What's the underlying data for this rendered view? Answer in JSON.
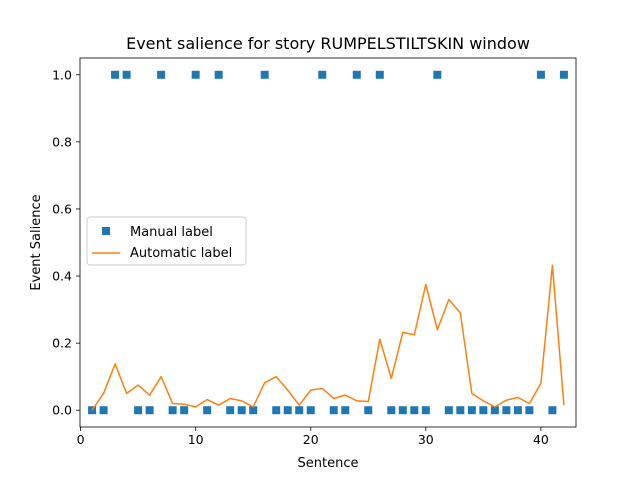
{
  "chart_data": {
    "type": "line",
    "title": "Event salience for story RUMPELSTILTSKIN window",
    "xlabel": "Sentence",
    "ylabel": "Event Salience",
    "xlim": [
      -0.05,
      43.05
    ],
    "ylim": [
      -0.05,
      1.05
    ],
    "xticks": [
      0,
      10,
      20,
      30,
      40
    ],
    "yticks": [
      0.0,
      0.2,
      0.4,
      0.6,
      0.8,
      1.0
    ],
    "xtick_labels": [
      "0",
      "10",
      "20",
      "30",
      "40"
    ],
    "ytick_labels": [
      "0.0",
      "0.2",
      "0.4",
      "0.6",
      "0.8",
      "1.0"
    ],
    "grid": false,
    "legend": {
      "placement": "center-left"
    },
    "x": [
      1,
      2,
      3,
      4,
      5,
      6,
      7,
      8,
      9,
      10,
      11,
      12,
      13,
      14,
      15,
      16,
      17,
      18,
      19,
      20,
      21,
      22,
      23,
      24,
      25,
      26,
      27,
      28,
      29,
      30,
      31,
      32,
      33,
      34,
      35,
      36,
      37,
      38,
      39,
      40,
      41,
      42
    ],
    "series": [
      {
        "name": "Manual label",
        "style": "square-marker",
        "color": "#1f77b4",
        "values": [
          0,
          0,
          1,
          1,
          0,
          0,
          1,
          0,
          0,
          1,
          0,
          1,
          0,
          0,
          0,
          1,
          0,
          0,
          0,
          0,
          1,
          0,
          0,
          1,
          0,
          1,
          0,
          0,
          0,
          0,
          1,
          0,
          0,
          0,
          0,
          0,
          0,
          0,
          0,
          1,
          0,
          1
        ]
      },
      {
        "name": "Automatic label",
        "style": "line",
        "color": "#ff7f0e",
        "values": [
          0.0,
          0.05,
          0.138,
          0.05,
          0.075,
          0.045,
          0.1,
          0.02,
          0.018,
          0.01,
          0.032,
          0.015,
          0.035,
          0.028,
          0.01,
          0.082,
          0.1,
          0.06,
          0.015,
          0.06,
          0.065,
          0.035,
          0.045,
          0.028,
          0.026,
          0.212,
          0.095,
          0.232,
          0.225,
          0.375,
          0.24,
          0.33,
          0.29,
          0.05,
          0.028,
          0.01,
          0.03,
          0.038,
          0.02,
          0.08,
          0.432,
          0.015
        ]
      }
    ]
  }
}
